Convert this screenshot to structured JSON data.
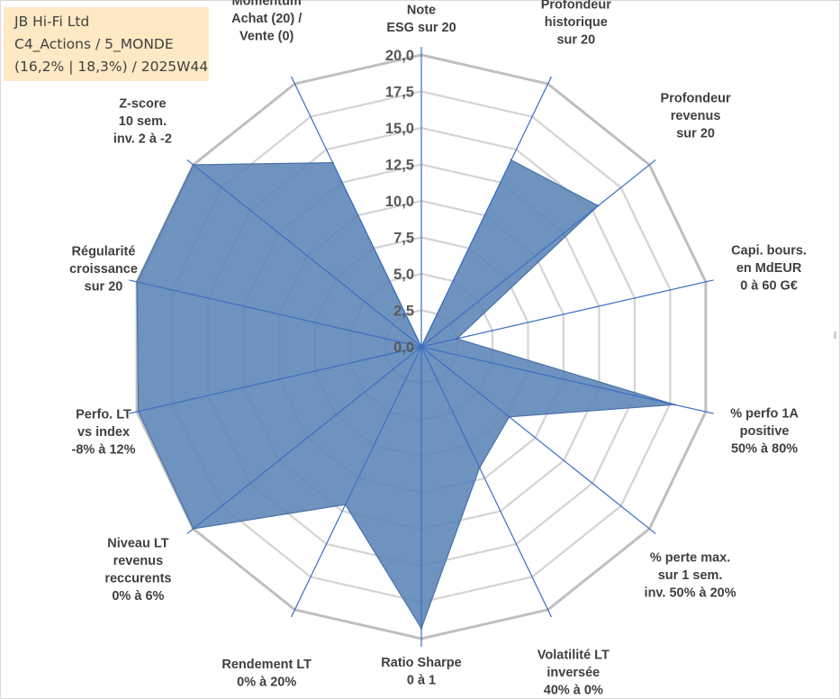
{
  "info": {
    "company": "JB Hi-Fi Ltd",
    "portfolio": "C4_Actions / 5_MONDE",
    "stats": "(16,2% | 18,3%) / 2025W44"
  },
  "chart_data": {
    "type": "radar",
    "title": "",
    "rmin": 0,
    "rmax": 20,
    "step": 2.5,
    "tick_labels": [
      "0,0",
      "2,5",
      "5,0",
      "7,5",
      "10,0",
      "12,5",
      "15,0",
      "17,5",
      "20,0"
    ],
    "fill_color": "#5b84b6",
    "spoke_color": "#3a6fc4",
    "grid_color": "#d4d4d4",
    "outer_grid_color": "#bfbfbf",
    "axes": [
      {
        "label": [
          "Note",
          "ESG sur 20"
        ],
        "value": 0
      },
      {
        "label": [
          "Profondeur",
          "historique",
          "sur 20"
        ],
        "value": 14.2
      },
      {
        "label": [
          "Profondeur",
          "revenus",
          "sur 20"
        ],
        "value": 15.5
      },
      {
        "label": [
          "Capi. bours.",
          "en MdEUR",
          "0 à 60 G€"
        ],
        "value": 2.5
      },
      {
        "label": [
          "% perfo 1A",
          "positive",
          "50% à 80%"
        ],
        "value": 17.8
      },
      {
        "label": [
          "% perte max.",
          "sur 1 sem.",
          "inv. 50% à 20%"
        ],
        "value": 7.7
      },
      {
        "label": [
          "Volatilité LT",
          "inversée",
          "40% à 0%"
        ],
        "value": 9.2
      },
      {
        "label": [
          "Ratio Sharpe",
          "0 à 1"
        ],
        "value": 19.3
      },
      {
        "label": [
          "Rendement LT",
          "0% à 20%"
        ],
        "value": 12.0
      },
      {
        "label": [
          "Niveau LT",
          "revenus",
          "reccurents",
          "0% à 6%"
        ],
        "value": 20
      },
      {
        "label": [
          "Perfo. LT",
          "vs index",
          "-8% à 12%"
        ],
        "value": 19.9
      },
      {
        "label": [
          "Régularité",
          "croissance",
          "sur 20"
        ],
        "value": 20
      },
      {
        "label": [
          "Z-score",
          "10 sem.",
          "inv. 2 à -2"
        ],
        "value": 20
      },
      {
        "label": [
          "Momentum",
          "Achat (20) /",
          "Vente (0)"
        ],
        "value": 14.0
      }
    ]
  }
}
